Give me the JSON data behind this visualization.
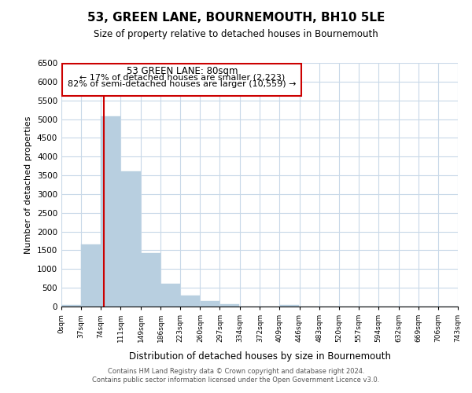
{
  "title": "53, GREEN LANE, BOURNEMOUTH, BH10 5LE",
  "subtitle": "Size of property relative to detached houses in Bournemouth",
  "xlabel": "Distribution of detached houses by size in Bournemouth",
  "ylabel": "Number of detached properties",
  "bar_edges": [
    0,
    37,
    74,
    111,
    149,
    186,
    223,
    260,
    297,
    334,
    372,
    409,
    446,
    483,
    520,
    557,
    594,
    632,
    669,
    706,
    743
  ],
  "bar_heights": [
    50,
    1650,
    5080,
    3600,
    1430,
    610,
    300,
    145,
    60,
    0,
    0,
    50,
    0,
    0,
    0,
    0,
    0,
    0,
    0,
    0
  ],
  "bar_color": "#b8cfe0",
  "vline_x": 80,
  "vline_color": "#cc0000",
  "ylim": [
    0,
    6500
  ],
  "yticks": [
    0,
    500,
    1000,
    1500,
    2000,
    2500,
    3000,
    3500,
    4000,
    4500,
    5000,
    5500,
    6000,
    6500
  ],
  "tick_labels": [
    "0sqm",
    "37sqm",
    "74sqm",
    "111sqm",
    "149sqm",
    "186sqm",
    "223sqm",
    "260sqm",
    "297sqm",
    "334sqm",
    "372sqm",
    "409sqm",
    "446sqm",
    "483sqm",
    "520sqm",
    "557sqm",
    "594sqm",
    "632sqm",
    "669sqm",
    "706sqm",
    "743sqm"
  ],
  "annotation_title": "53 GREEN LANE: 80sqm",
  "annotation_line1": "← 17% of detached houses are smaller (2,223)",
  "annotation_line2": "82% of semi-detached houses are larger (10,559) →",
  "annotation_box_color": "#ffffff",
  "annotation_box_edge": "#cc0000",
  "footer_line1": "Contains HM Land Registry data © Crown copyright and database right 2024.",
  "footer_line2": "Contains public sector information licensed under the Open Government Licence v3.0.",
  "bg_color": "#ffffff",
  "grid_color": "#c8d8e8"
}
